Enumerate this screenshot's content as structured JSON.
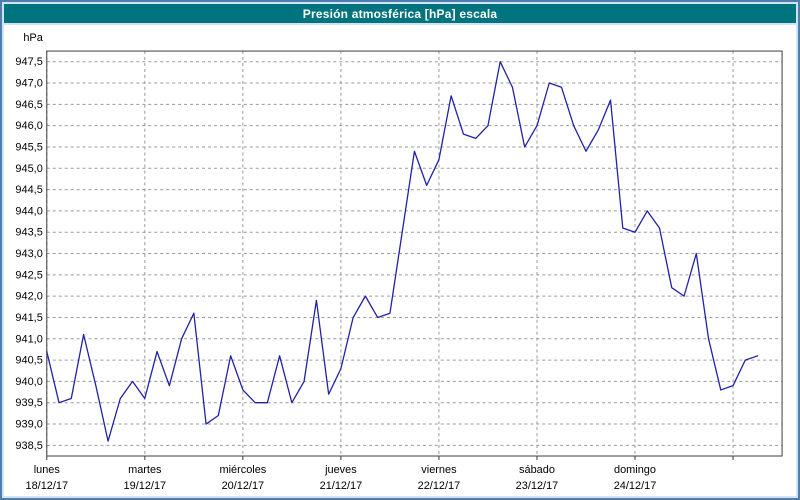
{
  "window": {
    "title": "Presión atmosférica [hPa] escala"
  },
  "colors": {
    "title_bar_bg": "#00747E",
    "title_text": "#FFFFFF",
    "series_line": "#2121A8",
    "gridline": "#9A9A9A",
    "frame_border": "#4C7FB0"
  },
  "chart_data": {
    "type": "line",
    "title": "Presión atmosférica [hPa] escala",
    "ylabel": "hPa",
    "xlabel": "",
    "ylim": [
      938.25,
      947.75
    ],
    "yticks": {
      "start": 938.5,
      "end": 947.5,
      "step": 0.5
    },
    "grid": true,
    "legend": "none",
    "decimal_separator": ",",
    "x_days_span": 7.5,
    "point_interval_days": 0.125,
    "days": [
      {
        "name": "lunes",
        "date": "18/12/17"
      },
      {
        "name": "martes",
        "date": "19/12/17"
      },
      {
        "name": "miércoles",
        "date": "20/12/17"
      },
      {
        "name": "jueves",
        "date": "21/12/17"
      },
      {
        "name": "viernes",
        "date": "22/12/17"
      },
      {
        "name": "sábado",
        "date": "23/12/17"
      },
      {
        "name": "domingo",
        "date": "24/12/17"
      }
    ],
    "series": [
      {
        "name": "Presión atmosférica",
        "unit": "hPa",
        "values": [
          940.7,
          939.5,
          939.6,
          941.1,
          939.9,
          938.6,
          939.6,
          940.0,
          939.6,
          940.7,
          939.9,
          941.0,
          941.6,
          939.0,
          939.2,
          940.6,
          939.8,
          939.5,
          939.5,
          940.6,
          939.5,
          940.0,
          941.9,
          939.7,
          940.3,
          941.5,
          942.0,
          941.5,
          941.6,
          943.5,
          945.4,
          944.6,
          945.2,
          946.7,
          945.8,
          945.7,
          946.0,
          947.5,
          946.9,
          945.5,
          946.0,
          947.0,
          946.9,
          946.0,
          945.4,
          945.9,
          946.6,
          943.6,
          943.5,
          944.0,
          943.6,
          942.2,
          942.0,
          943.0,
          941.0,
          939.8,
          939.9,
          940.5,
          940.6
        ]
      }
    ]
  }
}
